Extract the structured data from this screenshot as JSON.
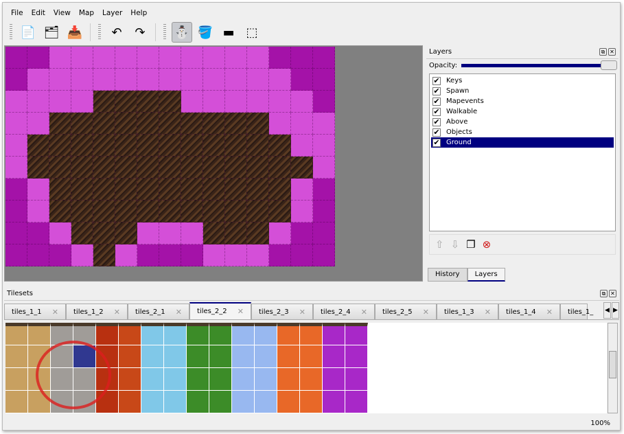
{
  "menu": [
    "File",
    "Edit",
    "View",
    "Map",
    "Layer",
    "Help"
  ],
  "toolbar": [
    {
      "name": "new-map",
      "icon": "📄"
    },
    {
      "name": "open",
      "icon": "🗂"
    },
    {
      "name": "save",
      "icon": "📥"
    },
    {
      "sep": true
    },
    {
      "name": "undo",
      "icon": "↶"
    },
    {
      "name": "redo",
      "icon": "↷"
    },
    {
      "sep": true
    },
    {
      "name": "stamp-brush",
      "icon": "⛄",
      "active": true
    },
    {
      "name": "bucket-fill",
      "icon": "🪣"
    },
    {
      "name": "eraser",
      "icon": "▬"
    },
    {
      "name": "rect-select",
      "icon": "⬚"
    }
  ],
  "map": {
    "rows": [
      "DDLLLLLLLLLLDDD",
      "DLLLLLLLLLLLLDD",
      "LLLLBBBBLLLLLLD",
      "LLBBBBBBBBBBLLL",
      "LBBBBBBBBBBBBLL",
      "LBBBBBBBBBBBBBL",
      "DLBBBBBBBBBBBLD",
      "DLBBBBBBBBBBBLD",
      "DDLBBBLLLBBBLDD",
      "DDDLBLDDDLLLDDD"
    ],
    "colors": {
      "D": "#a412a8",
      "L": "#d44fd8"
    }
  },
  "layers_panel": {
    "title": "Layers",
    "opacity_label": "Opacity:",
    "opacity": 1.0,
    "layers": [
      {
        "name": "Keys",
        "visible": true
      },
      {
        "name": "Spawn",
        "visible": true
      },
      {
        "name": "Mapevents",
        "visible": true
      },
      {
        "name": "Walkable",
        "visible": true
      },
      {
        "name": "Above",
        "visible": true
      },
      {
        "name": "Objects",
        "visible": true
      },
      {
        "name": "Ground",
        "visible": true,
        "selected": true
      }
    ],
    "tabs": [
      "History",
      "Layers"
    ],
    "active_tab": "Layers"
  },
  "tilesets": {
    "title": "Tilesets",
    "tabs": [
      "tiles_1_1",
      "tiles_1_2",
      "tiles_2_1",
      "tiles_2_2",
      "tiles_2_3",
      "tiles_2_4",
      "tiles_2_5",
      "tiles_1_3",
      "tiles_1_4",
      "tiles_1_"
    ],
    "active": "tiles_2_2",
    "tile_colors": [
      "#c8a060",
      "#c8a060",
      "#a09c98",
      "#a09c98",
      "#b83010",
      "#c84818",
      "#80c8e8",
      "#80c8e8",
      "#3c8c28",
      "#3c8c28",
      "#98b8f0",
      "#98b8f0",
      "#e86828",
      "#e86828",
      "#a828c8",
      "#a828c8"
    ],
    "selected_tile": {
      "col": 3,
      "row": 1,
      "color": "#303890"
    }
  },
  "status": {
    "zoom": "100%"
  }
}
